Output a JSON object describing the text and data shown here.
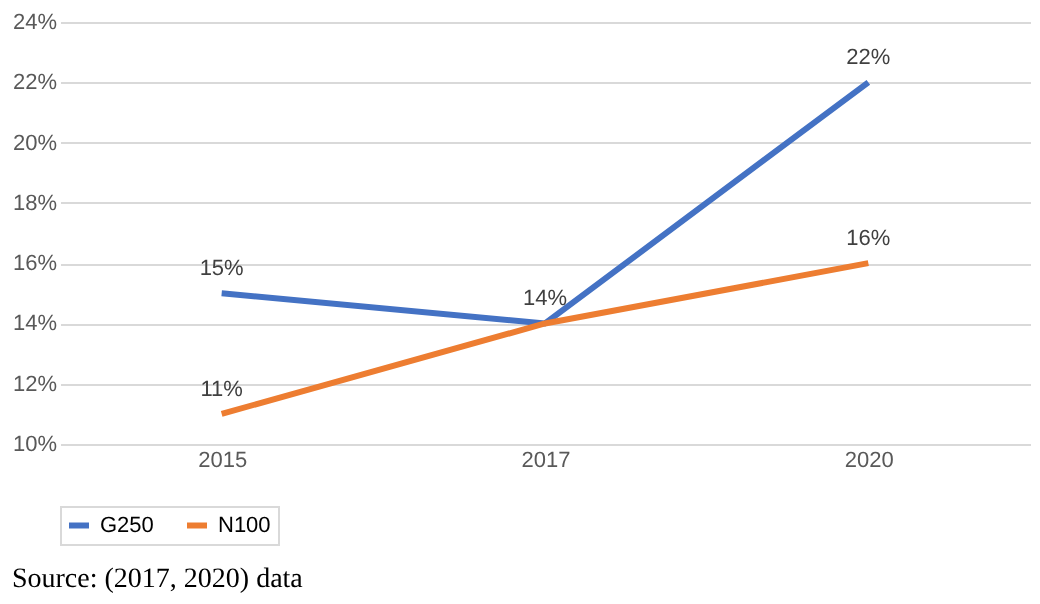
{
  "chart_data": {
    "type": "line",
    "categories": [
      "2015",
      "2017",
      "2020"
    ],
    "series": [
      {
        "name": "G250",
        "color": "#4472c4",
        "values": [
          15,
          14,
          22
        ],
        "value_labels": [
          "15%",
          "14%",
          "22%"
        ]
      },
      {
        "name": "N100",
        "color": "#ed7d31",
        "values": [
          11,
          14,
          16
        ],
        "value_labels": [
          "11%",
          null,
          "16%"
        ]
      }
    ],
    "ylim": [
      10,
      24
    ],
    "yticks": [
      {
        "value": 10,
        "label": "10%"
      },
      {
        "value": 12,
        "label": "12%"
      },
      {
        "value": 14,
        "label": "14%"
      },
      {
        "value": 16,
        "label": "16%"
      },
      {
        "value": 18,
        "label": "18%"
      },
      {
        "value": 20,
        "label": "20%"
      },
      {
        "value": 22,
        "label": "22%"
      },
      {
        "value": 24,
        "label": "24%"
      }
    ],
    "grid": "y",
    "legend": "bottom",
    "marker": "none",
    "line_style": "solid",
    "annotations": [
      "Source: (2017, 2020) data"
    ]
  }
}
